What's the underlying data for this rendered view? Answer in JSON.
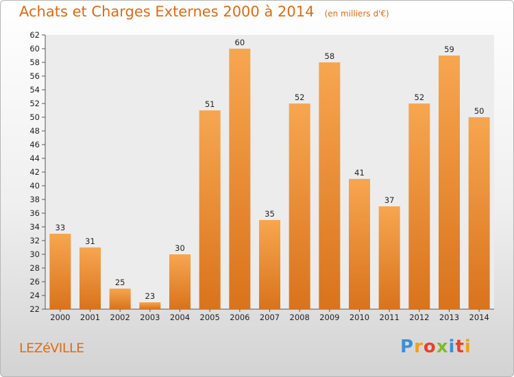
{
  "header": {
    "title": "Achats et Charges Externes 2000 à 2014",
    "subtitle": "(en milliers d'€)"
  },
  "footer": {
    "city": "LEZéVILLE",
    "logo_letters": [
      "P",
      "r",
      "o",
      "x",
      "i",
      "t",
      "i"
    ],
    "logo_colors": [
      "#3b8fd8",
      "#f0a01a",
      "#e8402a",
      "#7dbb2a",
      "#3b8fd8",
      "#e8402a",
      "#f0a01a"
    ]
  },
  "colors": {
    "bar_light": "#f7a650",
    "bar_dark": "#d9731c",
    "title": "#e06a13"
  },
  "chart_data": {
    "type": "bar",
    "categories": [
      "2000",
      "2001",
      "2002",
      "2003",
      "2004",
      "2005",
      "2006",
      "2007",
      "2008",
      "2009",
      "2010",
      "2011",
      "2012",
      "2013",
      "2014"
    ],
    "values": [
      33,
      31,
      25,
      23,
      30,
      51,
      60,
      35,
      52,
      58,
      41,
      37,
      52,
      59,
      50
    ],
    "title": "Achats et Charges Externes 2000 à 2014",
    "subtitle": "(en milliers d'€)",
    "xlabel": "",
    "ylabel": "",
    "ylim": [
      22,
      62
    ],
    "yticks": [
      22,
      24,
      26,
      28,
      30,
      32,
      34,
      36,
      38,
      40,
      42,
      44,
      46,
      48,
      50,
      52,
      54,
      56,
      58,
      60,
      62
    ],
    "grid": false,
    "legend": "none"
  }
}
